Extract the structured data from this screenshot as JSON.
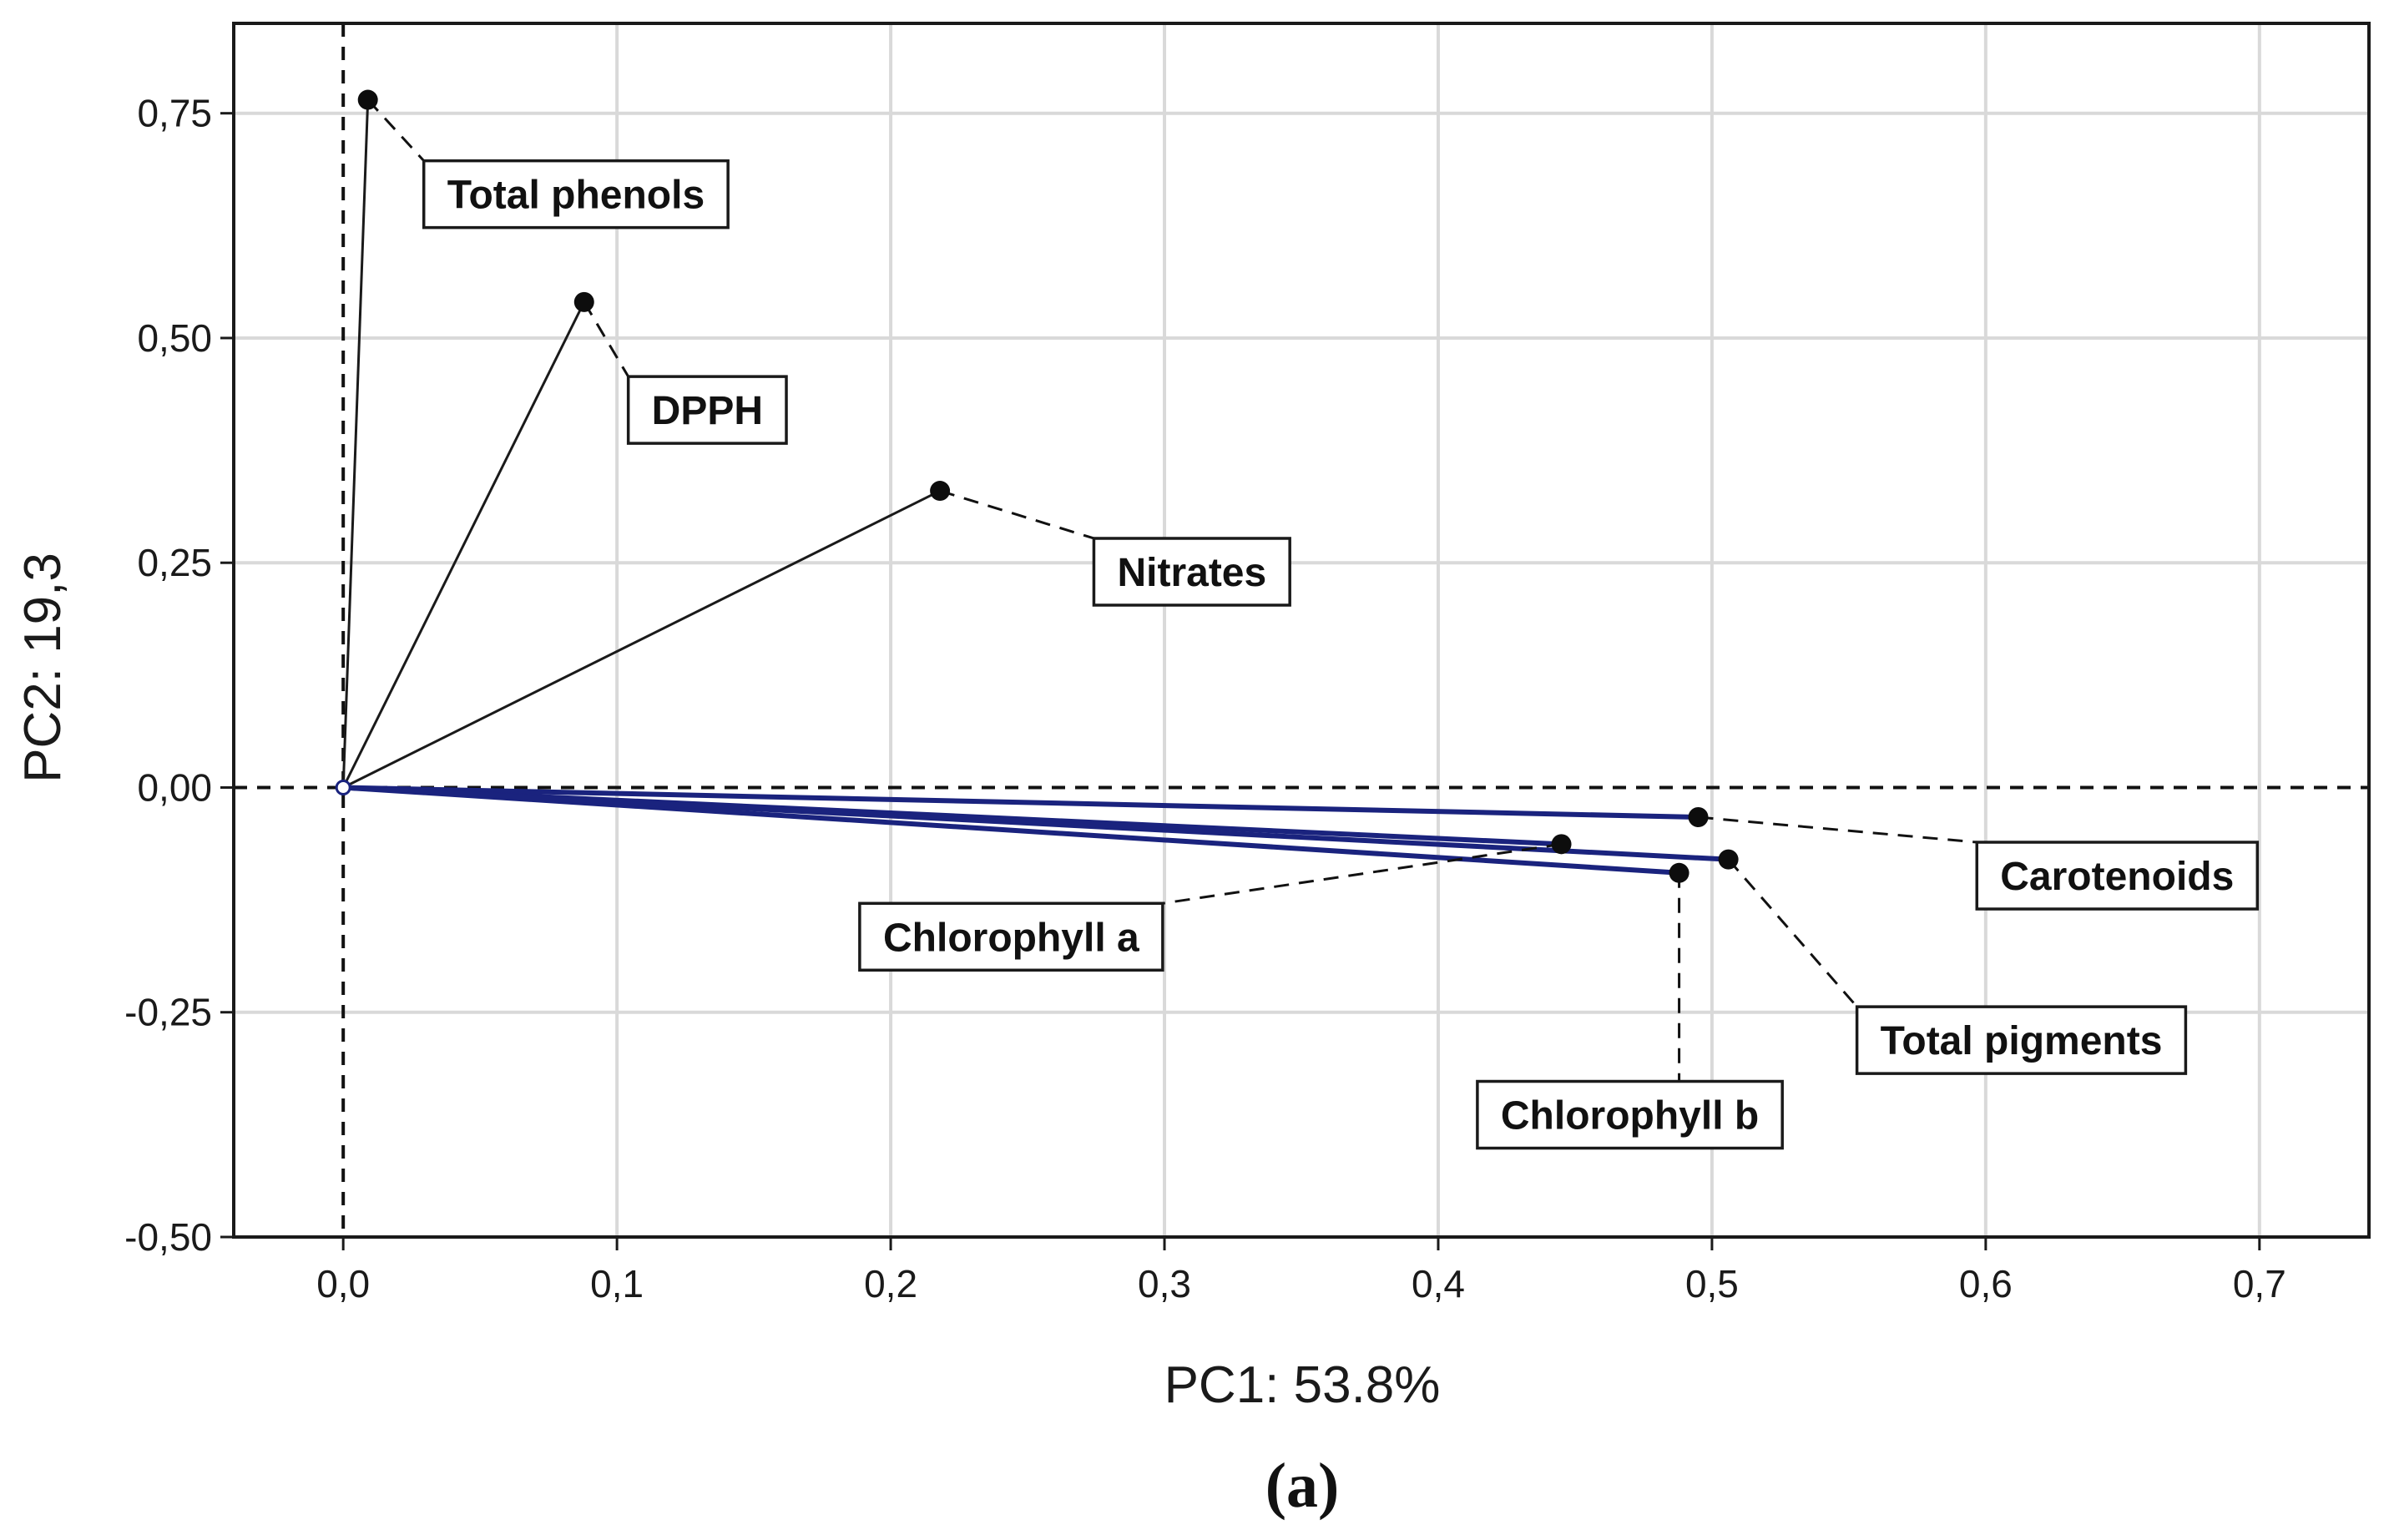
{
  "chart_data": {
    "type": "scatter",
    "subtype": "pca-loading-plot",
    "xlabel": "PC1: 53.8%",
    "ylabel": "PC2: 19,3",
    "caption": "(a)",
    "xlim": [
      -0.04,
      0.74
    ],
    "ylim": [
      -0.5,
      0.85
    ],
    "x_ticks": [
      0.0,
      0.1,
      0.2,
      0.3,
      0.4,
      0.5,
      0.6,
      0.7
    ],
    "x_tick_labels": [
      "0,0",
      "0,1",
      "0,2",
      "0,3",
      "0,4",
      "0,5",
      "0,6",
      "0,7"
    ],
    "y_ticks": [
      -0.5,
      -0.25,
      0.0,
      0.25,
      0.5,
      0.75
    ],
    "y_tick_labels": [
      "-0,50",
      "-0,25",
      "0,00",
      "0,25",
      "0,50",
      "0,75"
    ],
    "grid": true,
    "reference_lines": {
      "x": 0,
      "y": 0
    },
    "colors": {
      "vector_black": "#1a1a1a",
      "vector_blue": "#1a237e",
      "grid": "#d9d9d9",
      "frame": "#1a1a1a"
    },
    "points": [
      {
        "name": "Total phenols",
        "x": 0.009,
        "y": 0.765,
        "vector_color": "black",
        "label_anchor": [
          0.085,
          0.66
        ]
      },
      {
        "name": "DPPH",
        "x": 0.088,
        "y": 0.54,
        "vector_color": "black",
        "label_anchor": [
          0.133,
          0.42
        ]
      },
      {
        "name": "Nitrates",
        "x": 0.218,
        "y": 0.33,
        "vector_color": "black",
        "label_anchor": [
          0.31,
          0.24
        ]
      },
      {
        "name": "Carotenoids",
        "x": 0.495,
        "y": -0.033,
        "vector_color": "blue",
        "label_anchor": [
          0.648,
          -0.098
        ]
      },
      {
        "name": "Chlorophyll a",
        "x": 0.445,
        "y": -0.063,
        "vector_color": "blue",
        "label_anchor": [
          0.244,
          -0.166
        ]
      },
      {
        "name": "Chlorophyll b",
        "x": 0.488,
        "y": -0.095,
        "vector_color": "blue",
        "label_anchor": [
          0.47,
          -0.364
        ]
      },
      {
        "name": "Total pigments",
        "x": 0.506,
        "y": -0.08,
        "vector_color": "blue",
        "label_anchor": [
          0.613,
          -0.281
        ]
      }
    ]
  }
}
